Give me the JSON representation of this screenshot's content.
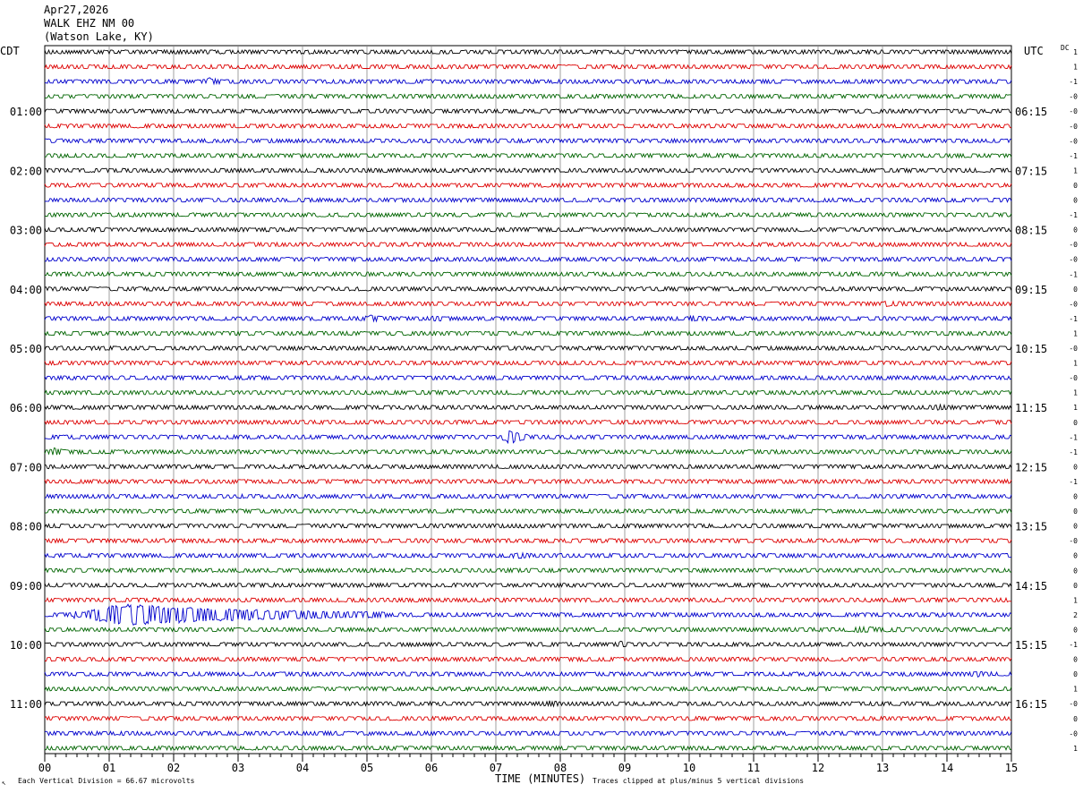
{
  "header": {
    "date": "Apr27,2026",
    "station": "WALK EHZ NM 00",
    "location": "(Watson Lake, KY)"
  },
  "left_tz": "CDT",
  "right_tz": "UTC",
  "dc_label": "DC",
  "footer": {
    "scale_note": "Each Vertical Division =   66.67 microvolts",
    "xlabel": "TIME (MINUTES)",
    "clip_note": "Traces clipped at plus/minus 5 vertical divisions",
    "corner_mark": "↖"
  },
  "colors": [
    "#000000",
    "#dd0000",
    "#0000cc",
    "#006400"
  ],
  "chart_data": {
    "type": "line",
    "description_source": "helicorder seismogram, 15-minute lines",
    "x_ticks": [
      "00",
      "01",
      "02",
      "03",
      "04",
      "05",
      "06",
      "07",
      "08",
      "09",
      "10",
      "11",
      "12",
      "13",
      "14",
      "15"
    ],
    "x_range": [
      0,
      15
    ],
    "xlabel": "TIME (MINUTES)",
    "traces_per_hour": 4,
    "trace_count": 48,
    "left_hour_labels": [
      "01:00",
      "02:00",
      "03:00",
      "04:00",
      "05:00",
      "06:00",
      "07:00",
      "08:00",
      "09:00",
      "10:00",
      "11:00"
    ],
    "right_hour_labels": [
      "06:15",
      "07:15",
      "08:15",
      "09:15",
      "10:15",
      "11:15",
      "12:15",
      "13:15",
      "14:15",
      "15:15",
      "16:15"
    ],
    "dc_offsets": [
      "1",
      "1",
      "-1",
      "-0",
      "-0",
      "-0",
      "-0",
      "-1",
      "1",
      "0",
      "0",
      "-1",
      "0",
      "-0",
      "-0",
      "-1",
      "0",
      "-0",
      "-1",
      "1",
      "-0",
      "1",
      "-0",
      "1",
      "1",
      "0",
      "-1",
      "-1",
      "0",
      "-1",
      "0",
      "0",
      "0",
      "-0",
      "0",
      "0",
      "0",
      "1",
      "2",
      "0",
      "-1",
      "0",
      "0",
      "1",
      "-0",
      "0",
      "-0",
      "1"
    ],
    "events": [
      {
        "trace": 2,
        "minute": 2.5,
        "amp": 1.2,
        "dur": 0.25
      },
      {
        "trace": 18,
        "minute": 5.0,
        "amp": 0.8,
        "dur": 0.4
      },
      {
        "trace": 18,
        "minute": 6.0,
        "amp": 0.6,
        "dur": 0.3
      },
      {
        "trace": 18,
        "minute": 10.0,
        "amp": 0.7,
        "dur": 0.3
      },
      {
        "trace": 17,
        "minute": 13.0,
        "amp": 0.6,
        "dur": 0.4
      },
      {
        "trace": 26,
        "minute": 7.15,
        "amp": 3.5,
        "dur": 0.35
      },
      {
        "trace": 27,
        "minute": 0.1,
        "amp": 1.6,
        "dur": 0.25
      },
      {
        "trace": 24,
        "minute": 13.8,
        "amp": 0.8,
        "dur": 0.3
      },
      {
        "trace": 34,
        "minute": 7.3,
        "amp": 0.8,
        "dur": 0.3
      },
      {
        "trace": 38,
        "minute": 0.5,
        "amp": 5.0,
        "dur": 4.8
      },
      {
        "trace": 39,
        "minute": 12.5,
        "amp": 0.6,
        "dur": 1.0
      },
      {
        "trace": 40,
        "minute": 8.9,
        "amp": 1.0,
        "dur": 0.2
      },
      {
        "trace": 42,
        "minute": 14.4,
        "amp": 0.8,
        "dur": 0.3
      },
      {
        "trace": 44,
        "minute": 7.8,
        "amp": 0.9,
        "dur": 0.2
      }
    ]
  }
}
